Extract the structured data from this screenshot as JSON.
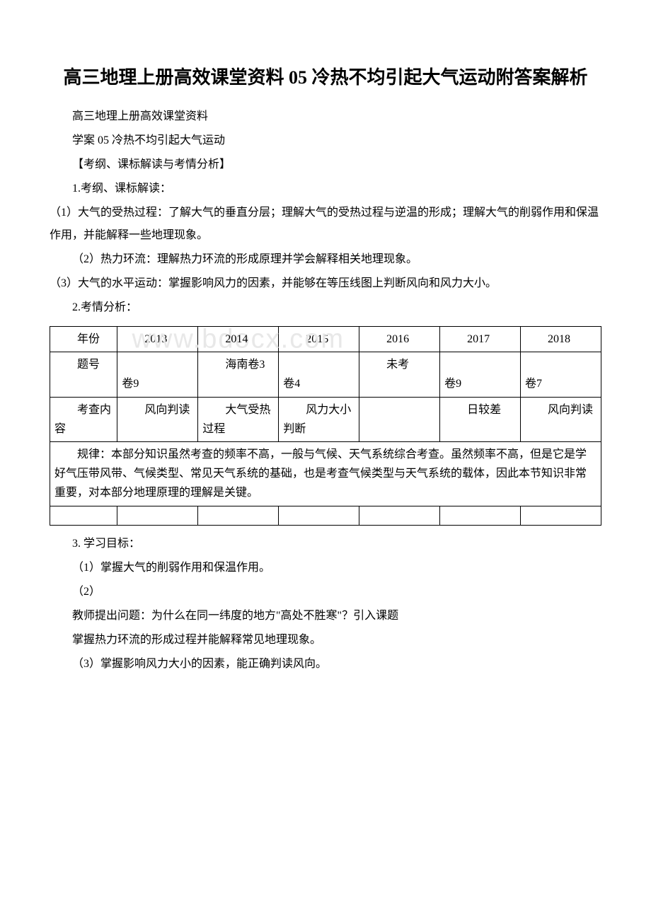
{
  "title": "高三地理上册高效课堂资料 05 冷热不均引起大气运动附答案解析",
  "p1": "高三地理上册高效课堂资料",
  "p2": "学案 05 冷热不均引起大气运动",
  "p3": "【考纲、课标解读与考情分析】",
  "p4": "1.考纲、课标解读：",
  "p5": "（1）大气的受热过程：了解大气的垂直分层；理解大气的受热过程与逆温的形成；理解大气的削弱作用和保温作用，并能解释一些地理现象。",
  "p6": "（2）热力环流：理解热力环流的形成原理并学会解释相关地理现象。",
  "p7": "（3）大气的水平运动：掌握影响风力的因素，并能够在等压线图上判断风向和风力大小。",
  "p8": "2.考情分析：",
  "table": {
    "row1": {
      "label": "年份",
      "c1": "2013",
      "c2": "2014",
      "c3": "2015",
      "c4": "2016",
      "c5": "2017",
      "c6": "2018"
    },
    "row2": {
      "label": "题号",
      "c1": "卷9",
      "c2": "海南卷3",
      "c3": "卷4",
      "c4": "未考",
      "c5": "卷9",
      "c6": "卷7"
    },
    "row3": {
      "label": "考查内容",
      "c1": "风向判读",
      "c2": "大气受热过程",
      "c3": "风力大小判断",
      "c4": "",
      "c5": "日较差",
      "c6": "风向判读"
    },
    "rule": "规律：本部分知识虽然考查的频率不高，一般与气候、天气系统综合考查。虽然频率不高，但是它是学好气压带风带、气候类型、常见天气系统的基础，也是考查气候类型与天气系统的载体，因此本节知识非常重要，对本部分地理原理的理解是关键。"
  },
  "p9": "3. 学习目标：",
  "p10": "（1）掌握大气的削弱作用和保温作用。",
  "p11": "（2）",
  "p12": "教师提出问题：为什么在同一纬度的地方\"高处不胜寒\"？引入课题",
  "p13": "掌握热力环流的形成过程并能解释常见地理现象。",
  "p14": "（3）掌握影响风力大小的因素，能正确判读风向。",
  "watermark": "www.bdocx.com"
}
